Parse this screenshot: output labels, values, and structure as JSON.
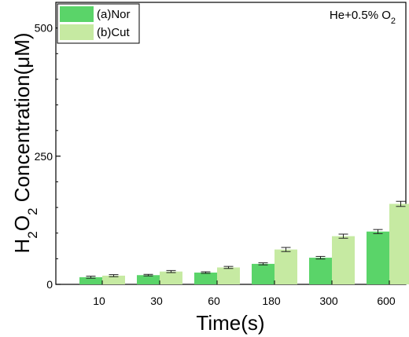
{
  "chart_data": {
    "type": "bar",
    "title": "",
    "annotation": "He+0.5% O2",
    "xlabel": "Time(s)",
    "ylabel": "H2O2 Concentration(μM)",
    "categories": [
      "10",
      "30",
      "60",
      "180",
      "300",
      "600"
    ],
    "ylim": [
      0,
      550
    ],
    "yticks": [
      0,
      250,
      500
    ],
    "series": [
      {
        "name": "(a)Nor",
        "color": "#5ad469",
        "values": [
          14,
          18,
          23,
          40,
          52,
          103
        ],
        "errors": [
          2,
          1.5,
          1.5,
          2,
          2.5,
          4
        ]
      },
      {
        "name": "(b)Cut",
        "color": "#c6eaa2",
        "values": [
          17,
          25,
          33,
          68,
          94,
          157
        ],
        "errors": [
          2,
          2,
          2,
          4,
          4,
          5
        ]
      }
    ],
    "legend": "top-left",
    "grid": false
  }
}
